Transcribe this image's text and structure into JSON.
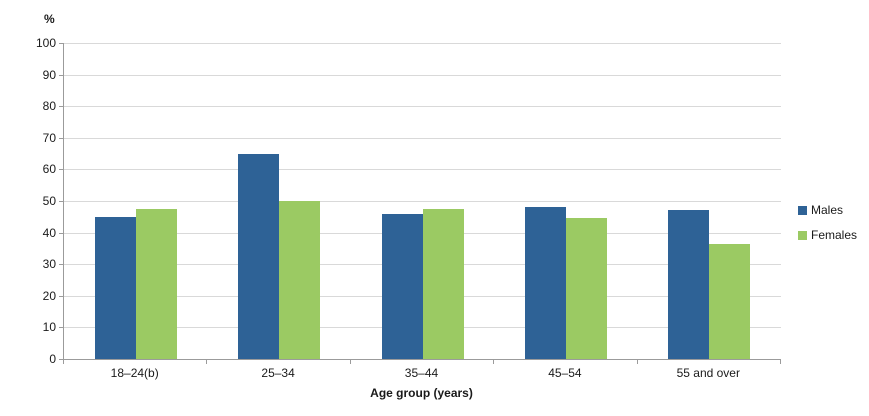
{
  "chart_data": {
    "type": "bar",
    "title": "",
    "categories": [
      "18–24(b)",
      "25–34",
      "35–44",
      "45–54",
      "55 and over"
    ],
    "series": [
      {
        "name": "Males",
        "color": "#2e6296",
        "values": [
          45,
          65,
          46,
          48,
          47
        ]
      },
      {
        "name": "Females",
        "color": "#9bca63",
        "values": [
          47.5,
          50,
          47.5,
          44.5,
          36.5
        ]
      }
    ],
    "xlabel": "Age group (years)",
    "ylabel": "%",
    "ylim": [
      0,
      100
    ],
    "ytick_step": 10,
    "grid": true,
    "legend_position": "right",
    "colors": {
      "gridline": "#d9d9d9",
      "axis": "#9b9b9b",
      "text": "#1a1a1a",
      "background": "#ffffff"
    }
  }
}
